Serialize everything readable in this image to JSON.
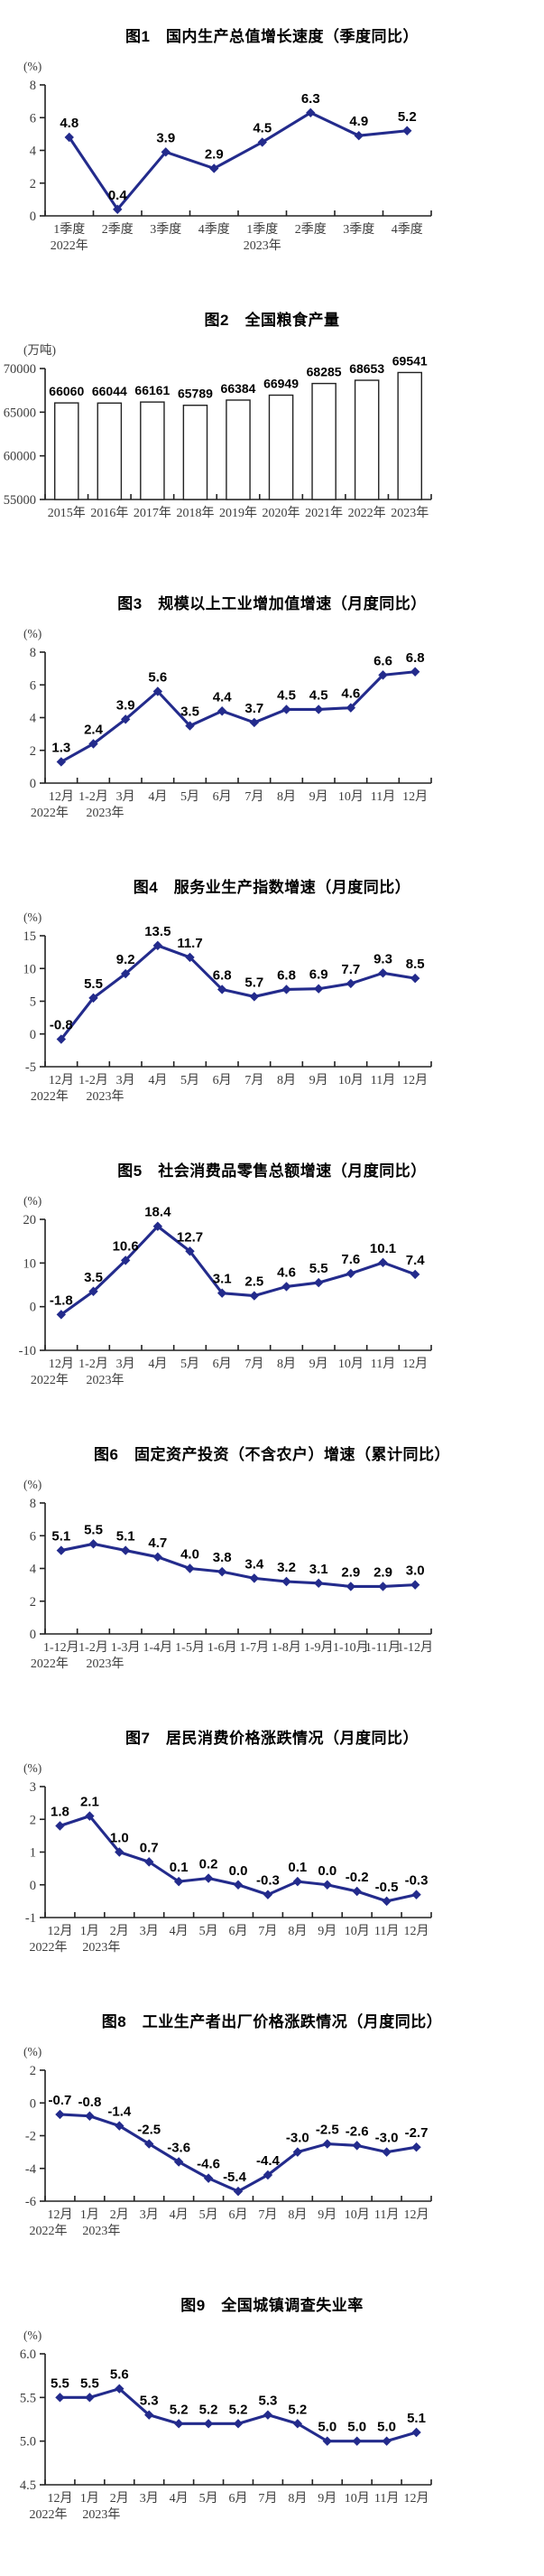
{
  "chart_data": [
    {
      "name": "gdp-growth-chart",
      "type": "line",
      "title": "图1　国内生产总值增长速度（季度同比）",
      "unit": "(%)",
      "color": "#232B8C",
      "categories": [
        "1季度",
        "2季度",
        "3季度",
        "4季度",
        "1季度",
        "2季度",
        "3季度",
        "4季度"
      ],
      "sub_labels": {
        "0": "2022年",
        "4": "2023年"
      },
      "values": [
        4.8,
        0.4,
        3.9,
        2.9,
        4.5,
        6.3,
        4.9,
        5.2
      ],
      "labels": [
        "4.8",
        "0.4",
        "3.9",
        "2.9",
        "4.5",
        "6.3",
        "4.9",
        "5.2"
      ],
      "ylim": [
        0,
        8
      ],
      "yticks": [
        0,
        2,
        4,
        6,
        8
      ],
      "ytick_labels": [
        "0",
        "2",
        "4",
        "6",
        "8"
      ],
      "grid": false,
      "legend": "none"
    },
    {
      "name": "grain-output-chart",
      "type": "bar",
      "title": "图2　全国粮食产量",
      "unit": "(万吨)",
      "color": "#222222",
      "bar_fill": "#ffffff",
      "bar_stroke": "#222222",
      "categories": [
        "2015年",
        "2016年",
        "2017年",
        "2018年",
        "2019年",
        "2020年",
        "2021年",
        "2022年",
        "2023年"
      ],
      "values": [
        66060,
        66044,
        66161,
        65789,
        66384,
        66949,
        68285,
        68653,
        69541
      ],
      "labels": [
        "66060",
        "66044",
        "66161",
        "65789",
        "66384",
        "66949",
        "68285",
        "68653",
        "69541"
      ],
      "ylim": [
        55000,
        70000
      ],
      "yticks": [
        55000,
        60000,
        65000,
        70000
      ],
      "ytick_labels": [
        "55000",
        "60000",
        "65000",
        "70000"
      ],
      "grid": false,
      "legend": "none"
    },
    {
      "name": "industrial-value-added-chart",
      "type": "line",
      "title": "图3　规模以上工业增加值增速（月度同比）",
      "unit": "(%)",
      "color": "#232B8C",
      "categories": [
        "12月",
        "1-2月",
        "3月",
        "4月",
        "5月",
        "6月",
        "7月",
        "8月",
        "9月",
        "10月",
        "11月",
        "12月"
      ],
      "sub_labels": {
        "0": "2022年",
        "1": "2023年"
      },
      "values": [
        1.3,
        2.4,
        3.9,
        5.6,
        3.5,
        4.4,
        3.7,
        4.5,
        4.5,
        4.6,
        6.6,
        6.8
      ],
      "labels": [
        "1.3",
        "2.4",
        "3.9",
        "5.6",
        "3.5",
        "4.4",
        "3.7",
        "4.5",
        "4.5",
        "4.6",
        "6.6",
        "6.8"
      ],
      "ylim": [
        0,
        8
      ],
      "yticks": [
        0,
        2,
        4,
        6,
        8
      ],
      "ytick_labels": [
        "0",
        "2",
        "4",
        "6",
        "8"
      ],
      "grid": false,
      "legend": "none"
    },
    {
      "name": "services-production-index-chart",
      "type": "line",
      "title": "图4　服务业生产指数增速（月度同比）",
      "unit": "(%)",
      "color": "#232B8C",
      "categories": [
        "12月",
        "1-2月",
        "3月",
        "4月",
        "5月",
        "6月",
        "7月",
        "8月",
        "9月",
        "10月",
        "11月",
        "12月"
      ],
      "sub_labels": {
        "0": "2022年",
        "1": "2023年"
      },
      "values": [
        -0.8,
        5.5,
        9.2,
        13.5,
        11.7,
        6.8,
        5.7,
        6.8,
        6.9,
        7.7,
        9.3,
        8.5
      ],
      "labels": [
        "-0.8",
        "5.5",
        "9.2",
        "13.5",
        "11.7",
        "6.8",
        "5.7",
        "6.8",
        "6.9",
        "7.7",
        "9.3",
        "8.5"
      ],
      "ylim": [
        -5,
        15
      ],
      "yticks": [
        -5,
        0,
        5,
        10,
        15
      ],
      "ytick_labels": [
        "-5",
        "0",
        "5",
        "10",
        "15"
      ],
      "grid": false,
      "legend": "none"
    },
    {
      "name": "retail-sales-chart",
      "type": "line",
      "title": "图5　社会消费品零售总额增速（月度同比）",
      "unit": "(%)",
      "color": "#232B8C",
      "categories": [
        "12月",
        "1-2月",
        "3月",
        "4月",
        "5月",
        "6月",
        "7月",
        "8月",
        "9月",
        "10月",
        "11月",
        "12月"
      ],
      "sub_labels": {
        "0": "2022年",
        "1": "2023年"
      },
      "values": [
        -1.8,
        3.5,
        10.6,
        18.4,
        12.7,
        3.1,
        2.5,
        4.6,
        5.5,
        7.6,
        10.1,
        7.4
      ],
      "labels": [
        "-1.8",
        "3.5",
        "10.6",
        "18.4",
        "12.7",
        "3.1",
        "2.5",
        "4.6",
        "5.5",
        "7.6",
        "10.1",
        "7.4"
      ],
      "ylim": [
        -10,
        20
      ],
      "yticks": [
        -10,
        0,
        10,
        20
      ],
      "ytick_labels": [
        "-10",
        "0",
        "10",
        "20"
      ],
      "grid": false,
      "legend": "none"
    },
    {
      "name": "fixed-asset-investment-chart",
      "type": "line",
      "title": "图6　固定资产投资（不含农户）增速（累计同比）",
      "unit": "(%)",
      "color": "#232B8C",
      "categories": [
        "1-12月",
        "1-2月",
        "1-3月",
        "1-4月",
        "1-5月",
        "1-6月",
        "1-7月",
        "1-8月",
        "1-9月",
        "1-10月",
        "1-11月",
        "1-12月"
      ],
      "sub_labels": {
        "0": "2022年",
        "1": "2023年"
      },
      "values": [
        5.1,
        5.5,
        5.1,
        4.7,
        4.0,
        3.8,
        3.4,
        3.2,
        3.1,
        2.9,
        2.9,
        3.0
      ],
      "labels": [
        "5.1",
        "5.5",
        "5.1",
        "4.7",
        "4.0",
        "3.8",
        "3.4",
        "3.2",
        "3.1",
        "2.9",
        "2.9",
        "3.0"
      ],
      "ylim": [
        0,
        8
      ],
      "yticks": [
        0,
        2,
        4,
        6,
        8
      ],
      "ytick_labels": [
        "0",
        "2",
        "4",
        "6",
        "8"
      ],
      "grid": false,
      "legend": "none"
    },
    {
      "name": "cpi-chart",
      "type": "line",
      "title": "图7　居民消费价格涨跌情况（月度同比）",
      "unit": "(%)",
      "color": "#232B8C",
      "categories": [
        "12月",
        "1月",
        "2月",
        "3月",
        "4月",
        "5月",
        "6月",
        "7月",
        "8月",
        "9月",
        "10月",
        "11月",
        "12月"
      ],
      "sub_labels": {
        "0": "2022年",
        "1": "2023年"
      },
      "values": [
        1.8,
        2.1,
        1.0,
        0.7,
        0.1,
        0.2,
        0.0,
        -0.3,
        0.1,
        0.0,
        -0.2,
        -0.5,
        -0.3
      ],
      "labels": [
        "1.8",
        "2.1",
        "1.0",
        "0.7",
        "0.1",
        "0.2",
        "0.0",
        "-0.3",
        "0.1",
        "0.0",
        "-0.2",
        "-0.5",
        "-0.3"
      ],
      "ylim": [
        -1,
        3
      ],
      "yticks": [
        -1,
        0,
        1,
        2,
        3
      ],
      "ytick_labels": [
        "-1",
        "0",
        "1",
        "2",
        "3"
      ],
      "grid": false,
      "legend": "none"
    },
    {
      "name": "ppi-chart",
      "type": "line",
      "title": "图8　工业生产者出厂价格涨跌情况（月度同比）",
      "unit": "(%)",
      "color": "#232B8C",
      "categories": [
        "12月",
        "1月",
        "2月",
        "3月",
        "4月",
        "5月",
        "6月",
        "7月",
        "8月",
        "9月",
        "10月",
        "11月",
        "12月"
      ],
      "sub_labels": {
        "0": "2022年",
        "1": "2023年"
      },
      "values": [
        -0.7,
        -0.8,
        -1.4,
        -2.5,
        -3.6,
        -4.6,
        -5.4,
        -4.4,
        -3.0,
        -2.5,
        -2.6,
        -3.0,
        -2.7
      ],
      "labels": [
        "-0.7",
        "-0.8",
        "-1.4",
        "-2.5",
        "-3.6",
        "-4.6",
        "-5.4",
        "-4.4",
        "-3.0",
        "-2.5",
        "-2.6",
        "-3.0",
        "-2.7"
      ],
      "label_dx": {
        "6": -4
      },
      "ylim": [
        -6,
        2
      ],
      "yticks": [
        -6,
        -4,
        -2,
        0,
        2
      ],
      "ytick_labels": [
        "-6",
        "-4",
        "-2",
        "0",
        "2"
      ],
      "grid": false,
      "legend": "none"
    },
    {
      "name": "unemployment-rate-chart",
      "type": "line",
      "title": "图9　全国城镇调查失业率",
      "unit": "(%)",
      "color": "#232B8C",
      "categories": [
        "12月",
        "1月",
        "2月",
        "3月",
        "4月",
        "5月",
        "6月",
        "7月",
        "8月",
        "9月",
        "10月",
        "11月",
        "12月"
      ],
      "sub_labels": {
        "0": "2022年",
        "1": "2023年"
      },
      "values": [
        5.5,
        5.5,
        5.6,
        5.3,
        5.2,
        5.2,
        5.2,
        5.3,
        5.2,
        5.0,
        5.0,
        5.0,
        5.1
      ],
      "labels": [
        "5.5",
        "5.5",
        "5.6",
        "5.3",
        "5.2",
        "5.2",
        "5.2",
        "5.3",
        "5.2",
        "5.0",
        "5.0",
        "5.0",
        "5.1"
      ],
      "ylim": [
        4.5,
        6.0
      ],
      "yticks": [
        4.5,
        5.0,
        5.5,
        6.0
      ],
      "ytick_labels": [
        "4.5",
        "5.0",
        "5.5",
        "6.0"
      ],
      "grid": false,
      "legend": "none"
    }
  ]
}
